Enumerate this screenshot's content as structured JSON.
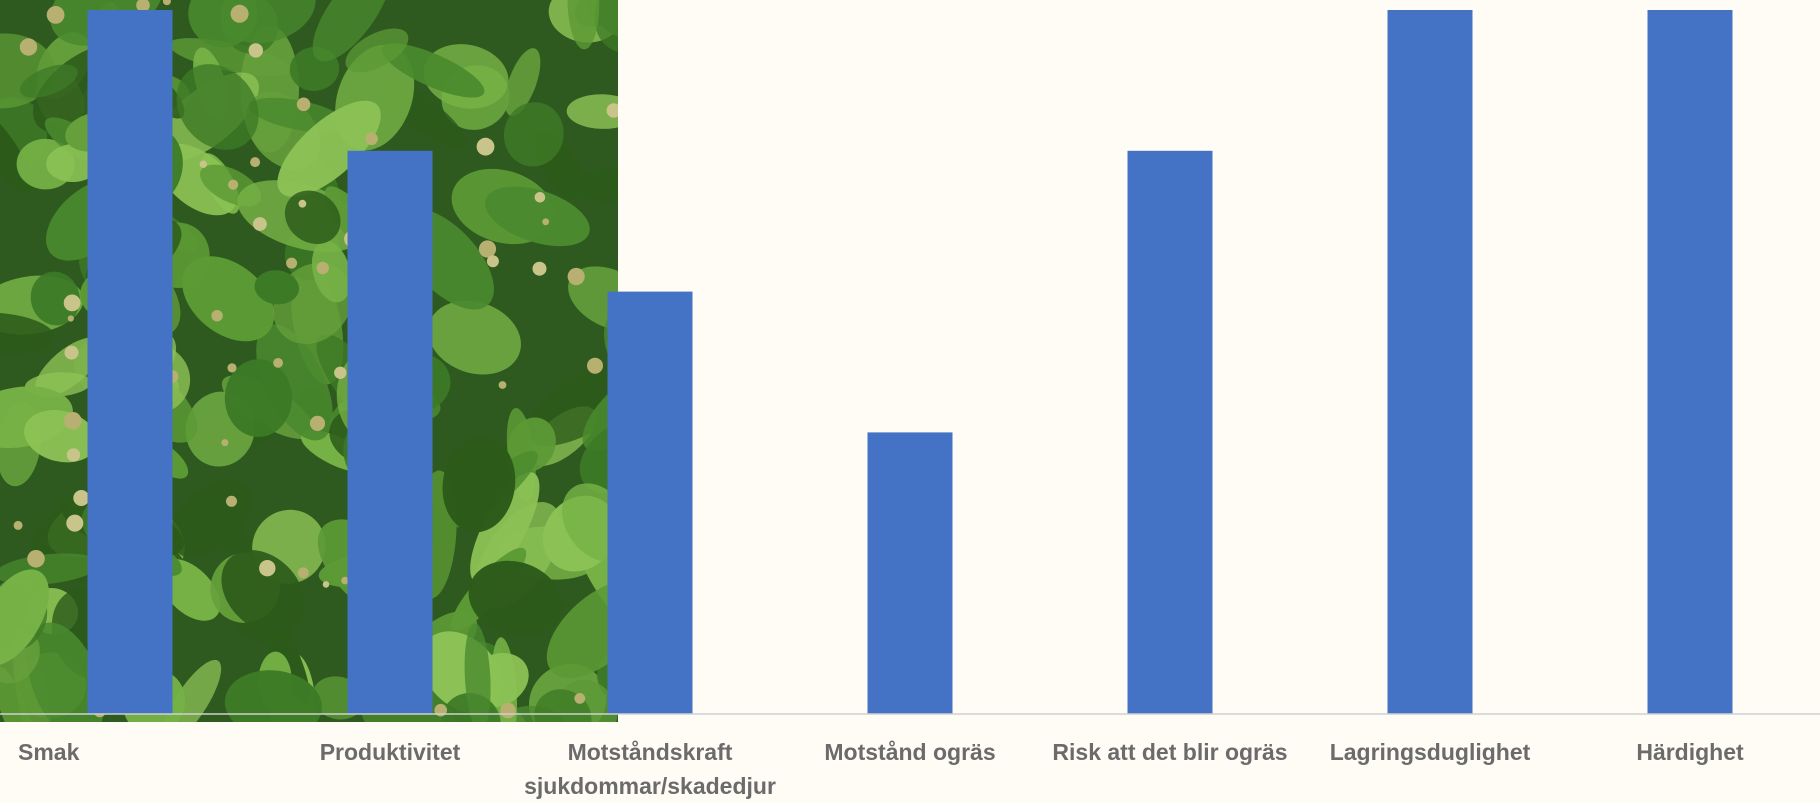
{
  "chart_data": {
    "type": "bar",
    "categories": [
      [
        "Smak"
      ],
      [
        "Produktivitet"
      ],
      [
        "Motståndskraft",
        "sjukdommar/skadedjur"
      ],
      [
        "Motstånd ogräs"
      ],
      [
        "Risk att det blir ogräs"
      ],
      [
        "Lagringsduglighet"
      ],
      [
        "Härdighet"
      ]
    ],
    "values": [
      5,
      4,
      3,
      2,
      4,
      5,
      5
    ],
    "ylim": [
      0,
      5
    ],
    "title": "",
    "xlabel": "",
    "ylabel": "",
    "grid": false,
    "legend": "none",
    "colors": {
      "bar": "#4472c4",
      "axis": "#d0d0d0",
      "label": "#6b6b6b",
      "background": "#fffcf5"
    },
    "background_image": "green-leaves-photo"
  }
}
